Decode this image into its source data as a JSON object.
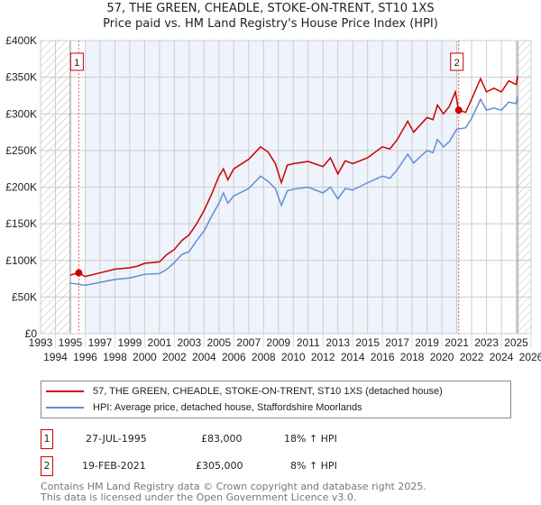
{
  "title": "57, THE GREEN, CHEADLE, STOKE-ON-TRENT, ST10 1XS",
  "subtitle": "Price paid vs. HM Land Registry's House Price Index (HPI)",
  "colors": {
    "property": "#cc0000",
    "hpi": "#6090d0",
    "shade": "#eef3fc"
  },
  "chart_data": {
    "type": "line",
    "xlim": [
      1993,
      2026
    ],
    "ylim": [
      0,
      400000
    ],
    "x_ticks": [
      "1993",
      "1994",
      "1995",
      "1996",
      "1997",
      "1998",
      "1999",
      "2000",
      "2001",
      "2002",
      "2003",
      "2004",
      "2005",
      "2006",
      "2007",
      "2008",
      "2009",
      "2010",
      "2011",
      "2012",
      "2013",
      "2014",
      "2015",
      "2016",
      "2017",
      "2018",
      "2019",
      "2020",
      "2021",
      "2022",
      "2023",
      "2024",
      "2025",
      "2026"
    ],
    "y_ticks": [
      {
        "v": 0,
        "label": "£0"
      },
      {
        "v": 50000,
        "label": "£50K"
      },
      {
        "v": 100000,
        "label": "£100K"
      },
      {
        "v": 150000,
        "label": "£150K"
      },
      {
        "v": 200000,
        "label": "£200K"
      },
      {
        "v": 250000,
        "label": "£250K"
      },
      {
        "v": 300000,
        "label": "£300K"
      },
      {
        "v": 350000,
        "label": "£350K"
      },
      {
        "v": 400000,
        "label": "£400K"
      }
    ],
    "grid": true,
    "series": [
      {
        "name": "57, THE GREEN, CHEADLE, STOKE-ON-TRENT, ST10 1XS (detached house)",
        "x": [
          1995.0,
          1995.57,
          1996.0,
          1997.0,
          1998.0,
          1999.0,
          1999.5,
          2000.0,
          2001.0,
          2001.5,
          2002.0,
          2002.5,
          2003.0,
          2003.5,
          2004.0,
          2004.5,
          2005.0,
          2005.3,
          2005.6,
          2006.0,
          2007.0,
          2007.8,
          2008.3,
          2008.8,
          2009.2,
          2009.6,
          2010.0,
          2011.0,
          2012.0,
          2012.5,
          2013.0,
          2013.5,
          2014.0,
          2015.0,
          2016.0,
          2016.5,
          2017.0,
          2017.7,
          2018.1,
          2019.0,
          2019.4,
          2019.7,
          2020.1,
          2020.5,
          2020.9,
          2021.13,
          2021.6,
          2022.0,
          2022.6,
          2023.0,
          2023.5,
          2024.0,
          2024.5,
          2025.0,
          2025.1
        ],
        "y": [
          80000,
          83000,
          78000,
          83000,
          88000,
          90000,
          92000,
          96000,
          98000,
          108000,
          115000,
          127000,
          135000,
          150000,
          168000,
          190000,
          215000,
          225000,
          210000,
          225000,
          238000,
          255000,
          248000,
          232000,
          206000,
          230000,
          232000,
          235000,
          228000,
          240000,
          218000,
          236000,
          232000,
          240000,
          255000,
          252000,
          265000,
          290000,
          275000,
          295000,
          292000,
          312000,
          300000,
          310000,
          330000,
          305000,
          302000,
          320000,
          348000,
          330000,
          335000,
          330000,
          345000,
          340000,
          352000
        ]
      },
      {
        "name": "HPI: Average price, detached house, Staffordshire Moorlands",
        "x": [
          1995.0,
          1996.0,
          1997.0,
          1998.0,
          1999.0,
          2000.0,
          2001.0,
          2001.5,
          2002.0,
          2002.5,
          2003.0,
          2003.5,
          2004.0,
          2004.5,
          2005.0,
          2005.3,
          2005.6,
          2006.0,
          2007.0,
          2007.8,
          2008.3,
          2008.8,
          2009.2,
          2009.6,
          2010.0,
          2011.0,
          2012.0,
          2012.5,
          2013.0,
          2013.5,
          2014.0,
          2015.0,
          2016.0,
          2016.5,
          2017.0,
          2017.7,
          2018.1,
          2019.0,
          2019.4,
          2019.7,
          2020.1,
          2020.5,
          2021.0,
          2021.6,
          2022.0,
          2022.6,
          2023.0,
          2023.5,
          2024.0,
          2024.5,
          2025.0,
          2025.1
        ],
        "y": [
          69000,
          66000,
          70000,
          74000,
          76000,
          81000,
          82000,
          88000,
          97000,
          108000,
          112000,
          127000,
          140000,
          160000,
          178000,
          192000,
          178000,
          188000,
          198000,
          215000,
          208000,
          198000,
          175000,
          195000,
          197000,
          200000,
          192000,
          200000,
          184000,
          198000,
          196000,
          206000,
          215000,
          212000,
          224000,
          245000,
          233000,
          250000,
          247000,
          265000,
          255000,
          262000,
          279000,
          281000,
          294000,
          320000,
          305000,
          308000,
          305000,
          316000,
          314000,
          324000
        ]
      }
    ],
    "sales": [
      {
        "label": "1",
        "x": 1995.57,
        "y": 83000
      },
      {
        "label": "2",
        "x": 2021.13,
        "y": 305000
      }
    ],
    "legend": "below"
  },
  "transactions": [
    {
      "num": "1",
      "date": "27-JUL-1995",
      "price": "£83,000",
      "hpi": "18% ↑ HPI"
    },
    {
      "num": "2",
      "date": "19-FEB-2021",
      "price": "£305,000",
      "hpi": "8% ↑ HPI"
    }
  ],
  "footer": [
    "Contains HM Land Registry data © Crown copyright and database right 2025.",
    "This data is licensed under the Open Government Licence v3.0."
  ]
}
